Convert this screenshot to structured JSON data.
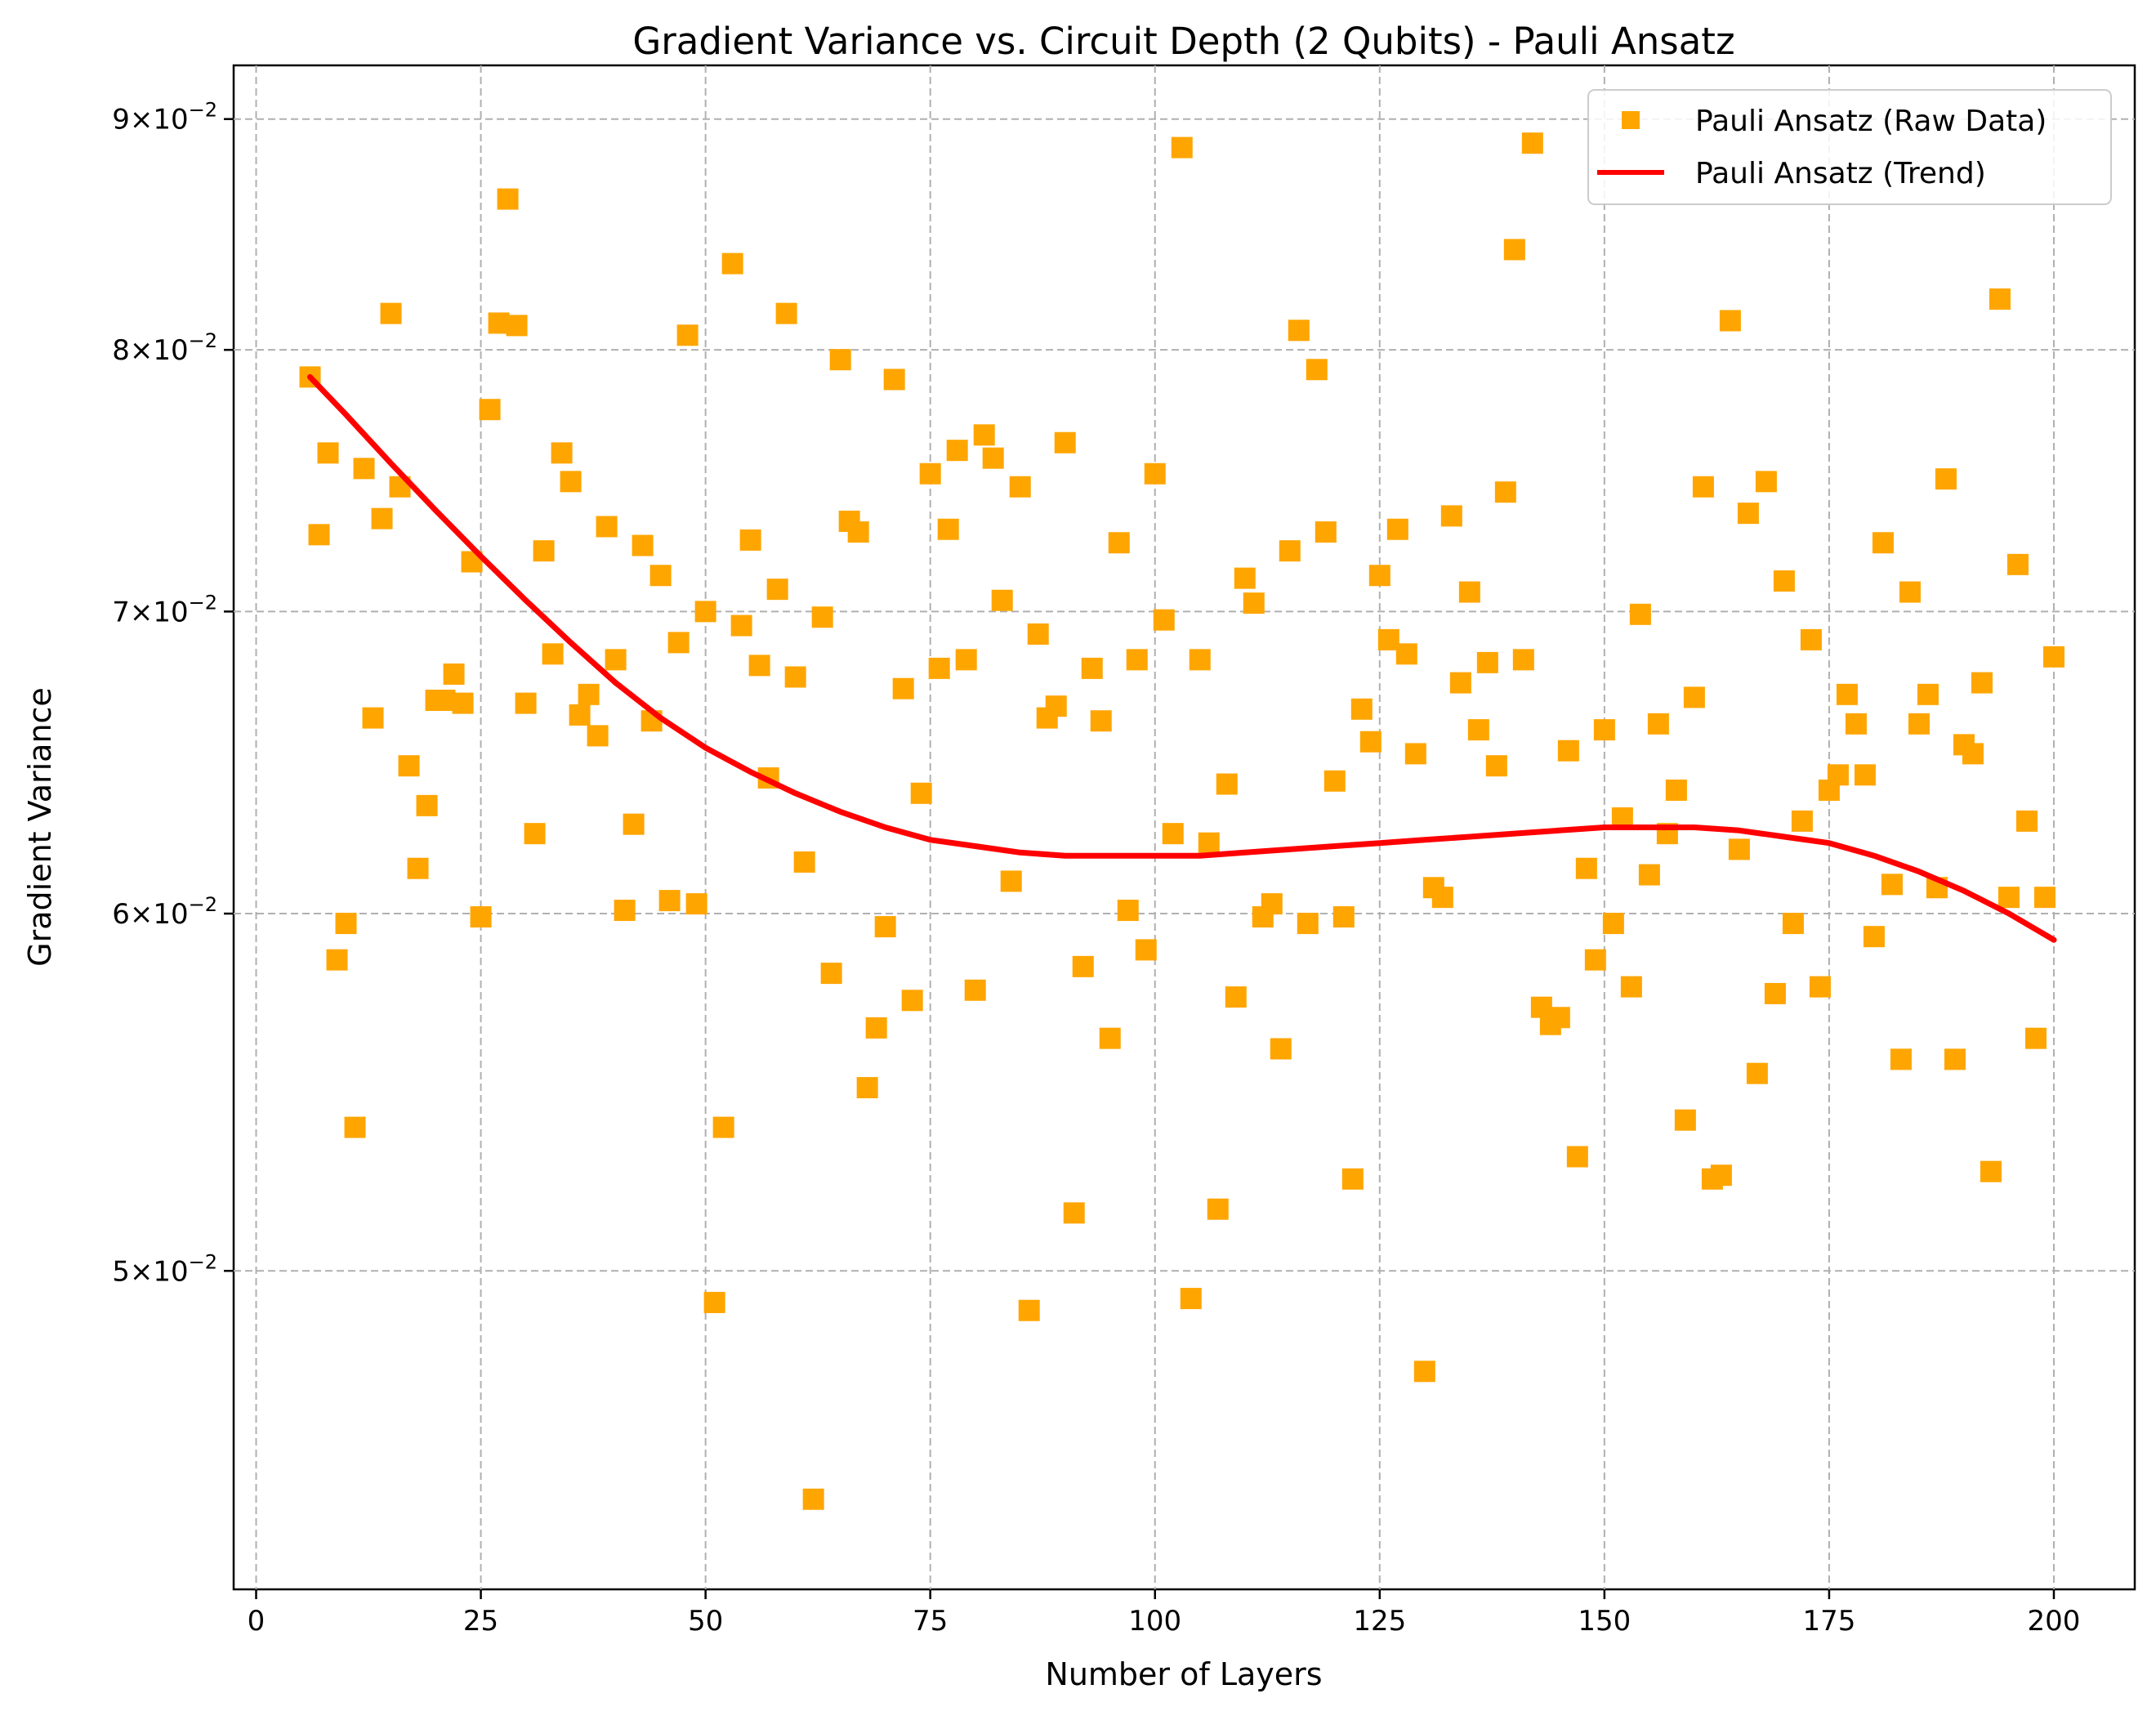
{
  "chart_data": {
    "type": "scatter",
    "title": "Gradient Variance vs. Circuit Depth (2 Qubits) - Pauli Ansatz",
    "xlabel": "Number of Layers",
    "ylabel": "Gradient Variance",
    "xlim": [
      -2.5,
      209
    ],
    "ylim": [
      0.0425,
      0.0925
    ],
    "yscale": "log",
    "grid": true,
    "legend_position": "top-right",
    "x_ticks": [
      0,
      25,
      50,
      75,
      100,
      125,
      150,
      175,
      200
    ],
    "x_tick_labels": [
      "0",
      "25",
      "50",
      "75",
      "100",
      "125",
      "150",
      "175",
      "200"
    ],
    "y_ticks": [
      0.05,
      0.06,
      0.07,
      0.08,
      0.09
    ],
    "y_tick_labels": [
      {
        "mantissa": "5",
        "exp": "−2"
      },
      {
        "mantissa": "6",
        "exp": "−2"
      },
      {
        "mantissa": "7",
        "exp": "−2"
      },
      {
        "mantissa": "8",
        "exp": "−2"
      },
      {
        "mantissa": "9",
        "exp": "−2"
      }
    ],
    "series": [
      {
        "name": "Pauli Ansatz (Raw Data)",
        "kind": "scatter",
        "marker": "square",
        "color": "#ffa500",
        "x": [
          6,
          7,
          8,
          9,
          10,
          11,
          12,
          13,
          14,
          15,
          16,
          17,
          18,
          19,
          20,
          21,
          22,
          23,
          24,
          25,
          26,
          27,
          28,
          29,
          30,
          31,
          32,
          33,
          34,
          35,
          36,
          37,
          38,
          39,
          40,
          41,
          42,
          43,
          44,
          45,
          46,
          47,
          48,
          49,
          50,
          51,
          52,
          53,
          54,
          55,
          56,
          57,
          58,
          59,
          60,
          61,
          62,
          63,
          64,
          65,
          66,
          67,
          68,
          69,
          70,
          71,
          72,
          73,
          74,
          75,
          76,
          77,
          78,
          79,
          80,
          81,
          82,
          83,
          84,
          85,
          86,
          87,
          88,
          89,
          90,
          91,
          92,
          93,
          94,
          95,
          96,
          97,
          98,
          99,
          100,
          101,
          102,
          103,
          104,
          105,
          106,
          107,
          108,
          109,
          110,
          111,
          112,
          113,
          114,
          115,
          116,
          117,
          118,
          119,
          120,
          121,
          122,
          123,
          124,
          125,
          126,
          127,
          128,
          129,
          130,
          131,
          132,
          133,
          134,
          135,
          136,
          137,
          138,
          139,
          140,
          141,
          142,
          143,
          144,
          145,
          146,
          147,
          148,
          149,
          150,
          151,
          152,
          153,
          154,
          155,
          156,
          157,
          158,
          159,
          160,
          161,
          162,
          163,
          164,
          165,
          166,
          167,
          168,
          169,
          170,
          171,
          172,
          173,
          174,
          175,
          176,
          177,
          178,
          179,
          180,
          181,
          182,
          183,
          184,
          185,
          186,
          187,
          188,
          189,
          190,
          191,
          192,
          193,
          194,
          195,
          196,
          197,
          198,
          199,
          200
        ],
        "y": [
          0.0789,
          0.0728,
          0.0759,
          0.0586,
          0.0597,
          0.0538,
          0.0753,
          0.0663,
          0.0734,
          0.0815,
          0.0746,
          0.0647,
          0.0614,
          0.0634,
          0.0669,
          0.0669,
          0.0678,
          0.0668,
          0.0718,
          0.0599,
          0.0776,
          0.0811,
          0.0864,
          0.081,
          0.0668,
          0.0625,
          0.0722,
          0.0685,
          0.0759,
          0.0748,
          0.0664,
          0.0671,
          0.0657,
          0.0731,
          0.0683,
          0.0601,
          0.0628,
          0.0724,
          0.0662,
          0.0713,
          0.0604,
          0.0689,
          0.0806,
          0.0603,
          0.07,
          0.0492,
          0.0538,
          0.0836,
          0.0695,
          0.0726,
          0.0681,
          0.0643,
          0.0708,
          0.0815,
          0.0677,
          0.0616,
          0.0445,
          0.0698,
          0.0582,
          0.0796,
          0.0733,
          0.0729,
          0.0549,
          0.0566,
          0.0596,
          0.0788,
          0.0673,
          0.0574,
          0.0638,
          0.0751,
          0.068,
          0.073,
          0.076,
          0.0683,
          0.0577,
          0.0766,
          0.0757,
          0.0704,
          0.061,
          0.0746,
          0.049,
          0.0692,
          0.0663,
          0.0667,
          0.0763,
          0.0515,
          0.0584,
          0.068,
          0.0662,
          0.0563,
          0.0725,
          0.0601,
          0.0683,
          0.0589,
          0.0751,
          0.0697,
          0.0625,
          0.0887,
          0.0493,
          0.0683,
          0.0622,
          0.0516,
          0.0641,
          0.0575,
          0.0712,
          0.0703,
          0.0599,
          0.0603,
          0.056,
          0.0722,
          0.0808,
          0.0597,
          0.0792,
          0.0729,
          0.0642,
          0.0599,
          0.0524,
          0.0666,
          0.0655,
          0.0713,
          0.069,
          0.073,
          0.0685,
          0.0651,
          0.0475,
          0.0608,
          0.0605,
          0.0735,
          0.0675,
          0.0707,
          0.0659,
          0.0682,
          0.0647,
          0.0744,
          0.0842,
          0.0683,
          0.0889,
          0.0572,
          0.0567,
          0.0569,
          0.0652,
          0.053,
          0.0614,
          0.0586,
          0.0659,
          0.0597,
          0.063,
          0.0578,
          0.0699,
          0.0612,
          0.0661,
          0.0625,
          0.0639,
          0.054,
          0.067,
          0.0746,
          0.0524,
          0.0525,
          0.0812,
          0.062,
          0.0736,
          0.0553,
          0.0748,
          0.0576,
          0.0711,
          0.0597,
          0.0629,
          0.069,
          0.0578,
          0.0639,
          0.0644,
          0.0671,
          0.0661,
          0.0644,
          0.0593,
          0.0725,
          0.0609,
          0.0557,
          0.0707,
          0.0661,
          0.0671,
          0.0608,
          0.0749,
          0.0557,
          0.0654,
          0.0651,
          0.0675,
          0.0526,
          0.0821,
          0.0605,
          0.0717,
          0.0629,
          0.0563,
          0.0605,
          0.0684
        ]
      },
      {
        "name": "Pauli Ansatz (Trend)",
        "kind": "line",
        "color": "#ff0000",
        "x": [
          6,
          10,
          15,
          20,
          25,
          30,
          35,
          40,
          45,
          50,
          55,
          60,
          65,
          70,
          75,
          80,
          85,
          90,
          95,
          100,
          105,
          110,
          115,
          120,
          125,
          130,
          135,
          140,
          145,
          150,
          155,
          160,
          165,
          170,
          175,
          180,
          185,
          190,
          195,
          200
        ],
        "y": [
          0.0789,
          0.0774,
          0.0755,
          0.0737,
          0.072,
          0.0704,
          0.0689,
          0.0675,
          0.0663,
          0.0653,
          0.0645,
          0.0638,
          0.0632,
          0.0627,
          0.0623,
          0.0621,
          0.0619,
          0.0618,
          0.0618,
          0.0618,
          0.0618,
          0.0619,
          0.062,
          0.0621,
          0.0622,
          0.0623,
          0.0624,
          0.0625,
          0.0626,
          0.0627,
          0.0627,
          0.0627,
          0.0626,
          0.0624,
          0.0622,
          0.0618,
          0.0613,
          0.0607,
          0.06,
          0.0592
        ]
      }
    ]
  }
}
